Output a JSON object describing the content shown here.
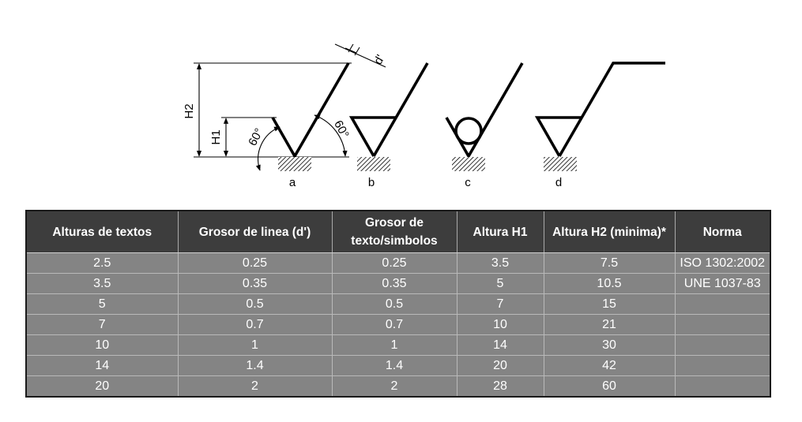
{
  "diagram": {
    "labels": {
      "a": "a",
      "b": "b",
      "c": "c",
      "d": "d"
    },
    "dimensions": {
      "h2": "H2",
      "h1": "H1",
      "thickness": "d'",
      "angle_left": "60°",
      "angle_right": "60°"
    }
  },
  "table": {
    "headers": [
      "Alturas de textos",
      "Grosor de linea (d')",
      "Grosor de texto/simbolos",
      "Altura H1",
      "Altura H2 (minima)*",
      "Norma"
    ],
    "rows": [
      [
        "2.5",
        "0.25",
        "0.25",
        "3.5",
        "7.5",
        "ISO 1302:2002"
      ],
      [
        "3.5",
        "0.35",
        "0.35",
        "5",
        "10.5",
        "UNE 1037-83"
      ],
      [
        "5",
        "0.5",
        "0.5",
        "7",
        "15",
        ""
      ],
      [
        "7",
        "0.7",
        "0.7",
        "10",
        "21",
        ""
      ],
      [
        "10",
        "1",
        "1",
        "14",
        "30",
        ""
      ],
      [
        "14",
        "1.4",
        "1.4",
        "20",
        "42",
        ""
      ],
      [
        "20",
        "2",
        "2",
        "28",
        "60",
        ""
      ]
    ]
  }
}
